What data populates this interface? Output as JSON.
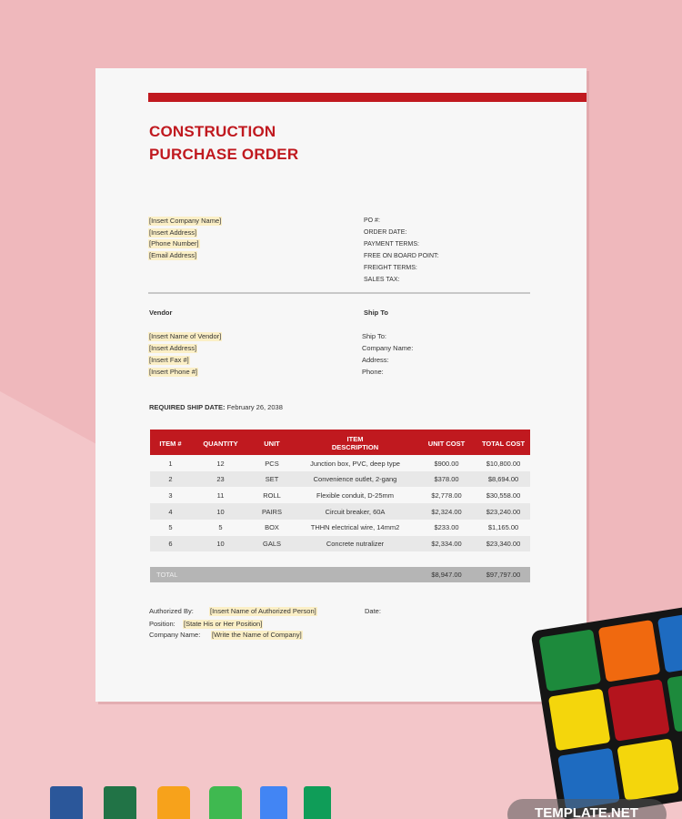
{
  "header": {
    "title_line1": "CONSTRUCTION",
    "title_line2": "PURCHASE ORDER"
  },
  "company": [
    "[Insert Company Name]",
    "[Insert Address]",
    "[Phone Number]",
    "[Email Address]"
  ],
  "order_fields": [
    "PO #:",
    "ORDER DATE:",
    "PAYMENT TERMS:",
    "FREE ON BOARD POINT:",
    "FREIGHT TERMS:",
    "SALES TAX:"
  ],
  "vendor": {
    "heading": "Vendor",
    "lines": [
      "[Insert Name of Vendor]",
      "[Insert Address]",
      "[Insert Fax #]",
      "[Insert Phone #]"
    ]
  },
  "ship_to": {
    "heading": "Ship To",
    "lines": [
      "Ship To:",
      "Company Name:",
      "Address:",
      "Phone:"
    ]
  },
  "required_ship_date": {
    "label": "REQUIRED SHIP DATE:",
    "value": "February 26, 2038"
  },
  "table": {
    "columns": [
      "ITEM #",
      "QUANTITY",
      "UNIT",
      "ITEM DESCRIPTION",
      "UNIT COST",
      "TOTAL COST"
    ],
    "rows": [
      [
        "1",
        "12",
        "PCS",
        "Junction box, PVC, deep type",
        "$900.00",
        "$10,800.00"
      ],
      [
        "2",
        "23",
        "SET",
        "Convenience outlet, 2-gang",
        "$378.00",
        "$8,694.00"
      ],
      [
        "3",
        "11",
        "ROLL",
        "Flexible conduit, D-25mm",
        "$2,778.00",
        "$30,558.00"
      ],
      [
        "4",
        "10",
        "PAIRS",
        "Circuit breaker, 60A",
        "$2,324.00",
        "$23,240.00"
      ],
      [
        "5",
        "5",
        "BOX",
        "THHN electrical wire, 14mm2",
        "$233.00",
        "$1,165.00"
      ],
      [
        "6",
        "10",
        "GALS",
        "Concrete nutralizer",
        "$2,334.00",
        "$23,340.00"
      ]
    ],
    "total": {
      "label": "TOTAL",
      "unit_cost": "$8,947.00",
      "total_cost": "$97,797.00"
    }
  },
  "signature": {
    "authorized_label": "Authorized By:",
    "authorized_value": "[Insert Name of Authorized Person]",
    "date_label": "Date:",
    "position_label": "Position:",
    "position_value": "[State His or Her Position]",
    "company_label": "Company Name:",
    "company_value": "[Write the Name of Company]"
  },
  "watermark": "TEMPLATE.NET"
}
